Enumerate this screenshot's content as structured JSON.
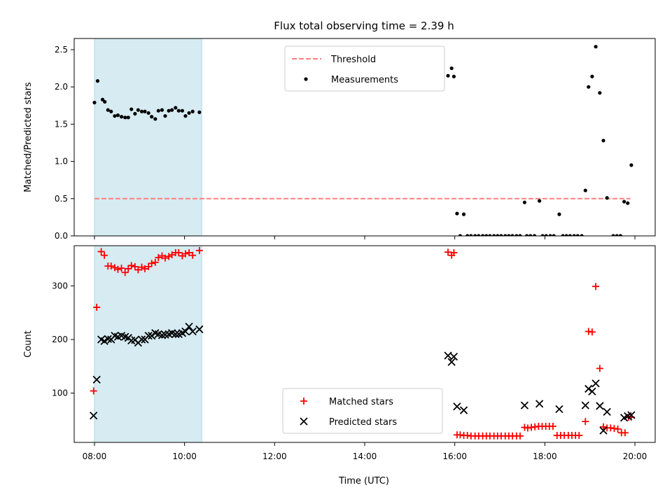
{
  "chart_data": {
    "title": "Flux total observing time = 2.39 h",
    "xlabel": "Time (UTC)",
    "x_range_hours": [
      7.55,
      20.45
    ],
    "x_ticks": [
      {
        "h": 8,
        "label": "08:00"
      },
      {
        "h": 10,
        "label": "10:00"
      },
      {
        "h": 12,
        "label": "12:00"
      },
      {
        "h": 14,
        "label": "14:00"
      },
      {
        "h": 16,
        "label": "16:00"
      },
      {
        "h": 18,
        "label": "18:00"
      },
      {
        "h": 20,
        "label": "20:00"
      }
    ],
    "shaded_span_hours": [
      8.0,
      10.38
    ],
    "shaded_color": "#add8e6",
    "panels": [
      {
        "type": "scatter",
        "ylabel": "Matched/Predicted stars",
        "ylim": [
          0,
          2.65
        ],
        "y_ticks": [
          {
            "v": 0.0,
            "label": "0.0"
          },
          {
            "v": 0.5,
            "label": "0.5"
          },
          {
            "v": 1.0,
            "label": "1.0"
          },
          {
            "v": 1.5,
            "label": "1.5"
          },
          {
            "v": 2.0,
            "label": "2.0"
          },
          {
            "v": 2.5,
            "label": "2.5"
          }
        ],
        "threshold": {
          "name": "Threshold",
          "value": 0.5,
          "x_range": [
            8.0,
            19.9
          ],
          "color": "#ff7f7f"
        },
        "legend": {
          "position": "upper-center",
          "entries": [
            "Threshold",
            "Measurements"
          ]
        },
        "series": [
          {
            "name": "Measurements",
            "color": "#000000",
            "marker": "dot",
            "points": [
              [
                8.0,
                1.79
              ],
              [
                8.07,
                2.08
              ],
              [
                8.18,
                1.83
              ],
              [
                8.23,
                1.8
              ],
              [
                8.3,
                1.69
              ],
              [
                8.37,
                1.67
              ],
              [
                8.45,
                1.61
              ],
              [
                8.52,
                1.62
              ],
              [
                8.6,
                1.6
              ],
              [
                8.68,
                1.59
              ],
              [
                8.75,
                1.59
              ],
              [
                8.82,
                1.7
              ],
              [
                8.9,
                1.64
              ],
              [
                8.97,
                1.69
              ],
              [
                9.05,
                1.67
              ],
              [
                9.12,
                1.67
              ],
              [
                9.2,
                1.65
              ],
              [
                9.27,
                1.6
              ],
              [
                9.35,
                1.57
              ],
              [
                9.42,
                1.68
              ],
              [
                9.5,
                1.69
              ],
              [
                9.57,
                1.61
              ],
              [
                9.65,
                1.68
              ],
              [
                9.72,
                1.69
              ],
              [
                9.8,
                1.72
              ],
              [
                9.87,
                1.68
              ],
              [
                9.95,
                1.68
              ],
              [
                10.02,
                1.61
              ],
              [
                10.1,
                1.65
              ],
              [
                10.18,
                1.67
              ],
              [
                10.33,
                1.66
              ],
              [
                15.85,
                2.15
              ],
              [
                15.93,
                2.25
              ],
              [
                15.98,
                2.14
              ],
              [
                16.05,
                0.3
              ],
              [
                16.12,
                0.0
              ],
              [
                16.2,
                0.29
              ],
              [
                16.28,
                0.0
              ],
              [
                16.36,
                0.0
              ],
              [
                16.45,
                0.0
              ],
              [
                16.53,
                0.0
              ],
              [
                16.62,
                0.0
              ],
              [
                16.7,
                0.0
              ],
              [
                16.78,
                0.0
              ],
              [
                16.87,
                0.0
              ],
              [
                16.95,
                0.0
              ],
              [
                17.03,
                0.0
              ],
              [
                17.12,
                0.0
              ],
              [
                17.2,
                0.0
              ],
              [
                17.28,
                0.0
              ],
              [
                17.37,
                0.0
              ],
              [
                17.45,
                0.0
              ],
              [
                17.55,
                0.45
              ],
              [
                17.6,
                0.0
              ],
              [
                17.68,
                0.0
              ],
              [
                17.77,
                0.0
              ],
              [
                17.88,
                0.47
              ],
              [
                17.95,
                0.0
              ],
              [
                18.03,
                0.0
              ],
              [
                18.12,
                0.0
              ],
              [
                18.2,
                0.0
              ],
              [
                18.32,
                0.29
              ],
              [
                18.4,
                0.0
              ],
              [
                18.48,
                0.0
              ],
              [
                18.56,
                0.0
              ],
              [
                18.65,
                0.0
              ],
              [
                18.73,
                0.0
              ],
              [
                18.82,
                0.0
              ],
              [
                18.9,
                0.61
              ],
              [
                18.97,
                2.0
              ],
              [
                19.05,
                2.14
              ],
              [
                19.13,
                2.54
              ],
              [
                19.22,
                1.92
              ],
              [
                19.3,
                1.28
              ],
              [
                19.38,
                0.51
              ],
              [
                19.52,
                0.0
              ],
              [
                19.6,
                0.0
              ],
              [
                19.68,
                0.0
              ],
              [
                19.76,
                0.46
              ],
              [
                19.84,
                0.44
              ],
              [
                19.92,
                0.95
              ]
            ]
          }
        ]
      },
      {
        "type": "scatter",
        "ylabel": "Count",
        "ylim": [
          8,
          375
        ],
        "y_ticks": [
          {
            "v": 100,
            "label": "100"
          },
          {
            "v": 200,
            "label": "200"
          },
          {
            "v": 300,
            "label": "300"
          }
        ],
        "legend": {
          "position": "lower-center",
          "entries": [
            "Matched stars",
            "Predicted stars"
          ]
        },
        "series": [
          {
            "name": "Matched stars",
            "color": "#ff0000",
            "marker": "plus",
            "points": [
              [
                7.98,
                104
              ],
              [
                8.05,
                260
              ],
              [
                8.15,
                364
              ],
              [
                8.22,
                357
              ],
              [
                8.3,
                337
              ],
              [
                8.37,
                337
              ],
              [
                8.45,
                334
              ],
              [
                8.52,
                331
              ],
              [
                8.6,
                333
              ],
              [
                8.68,
                325
              ],
              [
                8.75,
                332
              ],
              [
                8.82,
                338
              ],
              [
                8.9,
                336
              ],
              [
                8.97,
                330
              ],
              [
                9.05,
                335
              ],
              [
                9.12,
                332
              ],
              [
                9.2,
                336
              ],
              [
                9.27,
                342
              ],
              [
                9.35,
                344
              ],
              [
                9.42,
                353
              ],
              [
                9.5,
                356
              ],
              [
                9.57,
                352
              ],
              [
                9.65,
                355
              ],
              [
                9.72,
                358
              ],
              [
                9.8,
                362
              ],
              [
                9.87,
                362
              ],
              [
                9.95,
                356
              ],
              [
                10.02,
                360
              ],
              [
                10.1,
                362
              ],
              [
                10.18,
                357
              ],
              [
                10.33,
                366
              ],
              [
                15.85,
                363
              ],
              [
                15.93,
                357
              ],
              [
                15.98,
                362
              ],
              [
                16.05,
                22
              ],
              [
                16.12,
                22
              ],
              [
                16.2,
                21
              ],
              [
                16.28,
                21
              ],
              [
                16.36,
                20
              ],
              [
                16.45,
                20
              ],
              [
                16.53,
                20
              ],
              [
                16.62,
                20
              ],
              [
                16.7,
                20
              ],
              [
                16.78,
                20
              ],
              [
                16.87,
                20
              ],
              [
                16.95,
                20
              ],
              [
                17.03,
                20
              ],
              [
                17.12,
                20
              ],
              [
                17.2,
                20
              ],
              [
                17.28,
                20
              ],
              [
                17.37,
                20
              ],
              [
                17.45,
                20
              ],
              [
                17.55,
                36
              ],
              [
                17.62,
                35
              ],
              [
                17.7,
                36
              ],
              [
                17.78,
                37
              ],
              [
                17.86,
                38
              ],
              [
                17.94,
                38
              ],
              [
                18.02,
                38
              ],
              [
                18.1,
                38
              ],
              [
                18.18,
                38
              ],
              [
                18.27,
                21
              ],
              [
                18.35,
                21
              ],
              [
                18.43,
                21
              ],
              [
                18.52,
                21
              ],
              [
                18.6,
                21
              ],
              [
                18.68,
                21
              ],
              [
                18.76,
                21
              ],
              [
                18.9,
                47
              ],
              [
                18.97,
                215
              ],
              [
                19.05,
                214
              ],
              [
                19.13,
                299
              ],
              [
                19.22,
                146
              ],
              [
                19.3,
                37
              ],
              [
                19.38,
                35
              ],
              [
                19.46,
                35
              ],
              [
                19.54,
                34
              ],
              [
                19.62,
                33
              ],
              [
                19.7,
                26
              ],
              [
                19.78,
                26
              ],
              [
                19.86,
                55
              ],
              [
                19.92,
                55
              ]
            ]
          },
          {
            "name": "Predicted stars",
            "color": "#000000",
            "marker": "cross",
            "points": [
              [
                7.98,
                58
              ],
              [
                8.05,
                125
              ],
              [
                8.15,
                200
              ],
              [
                8.22,
                197
              ],
              [
                8.3,
                201
              ],
              [
                8.37,
                200
              ],
              [
                8.45,
                207
              ],
              [
                8.52,
                205
              ],
              [
                8.6,
                207
              ],
              [
                8.68,
                205
              ],
              [
                8.75,
                203
              ],
              [
                8.82,
                198
              ],
              [
                8.9,
                199
              ],
              [
                8.97,
                194
              ],
              [
                9.05,
                200
              ],
              [
                9.12,
                200
              ],
              [
                9.2,
                207
              ],
              [
                9.27,
                207
              ],
              [
                9.35,
                212
              ],
              [
                9.42,
                210
              ],
              [
                9.5,
                208
              ],
              [
                9.57,
                209
              ],
              [
                9.65,
                210
              ],
              [
                9.72,
                212
              ],
              [
                9.8,
                210
              ],
              [
                9.87,
                210
              ],
              [
                9.95,
                212
              ],
              [
                10.02,
                215
              ],
              [
                10.1,
                224
              ],
              [
                10.18,
                215
              ],
              [
                10.33,
                219
              ],
              [
                15.85,
                170
              ],
              [
                15.93,
                158
              ],
              [
                15.98,
                168
              ],
              [
                16.05,
                75
              ],
              [
                16.2,
                68
              ],
              [
                17.55,
                77
              ],
              [
                17.88,
                80
              ],
              [
                18.32,
                70
              ],
              [
                18.9,
                77
              ],
              [
                18.97,
                108
              ],
              [
                19.05,
                103
              ],
              [
                19.13,
                118
              ],
              [
                19.22,
                76
              ],
              [
                19.3,
                30
              ],
              [
                19.38,
                65
              ],
              [
                19.76,
                54
              ],
              [
                19.84,
                57
              ],
              [
                19.92,
                59
              ]
            ]
          }
        ]
      }
    ]
  }
}
